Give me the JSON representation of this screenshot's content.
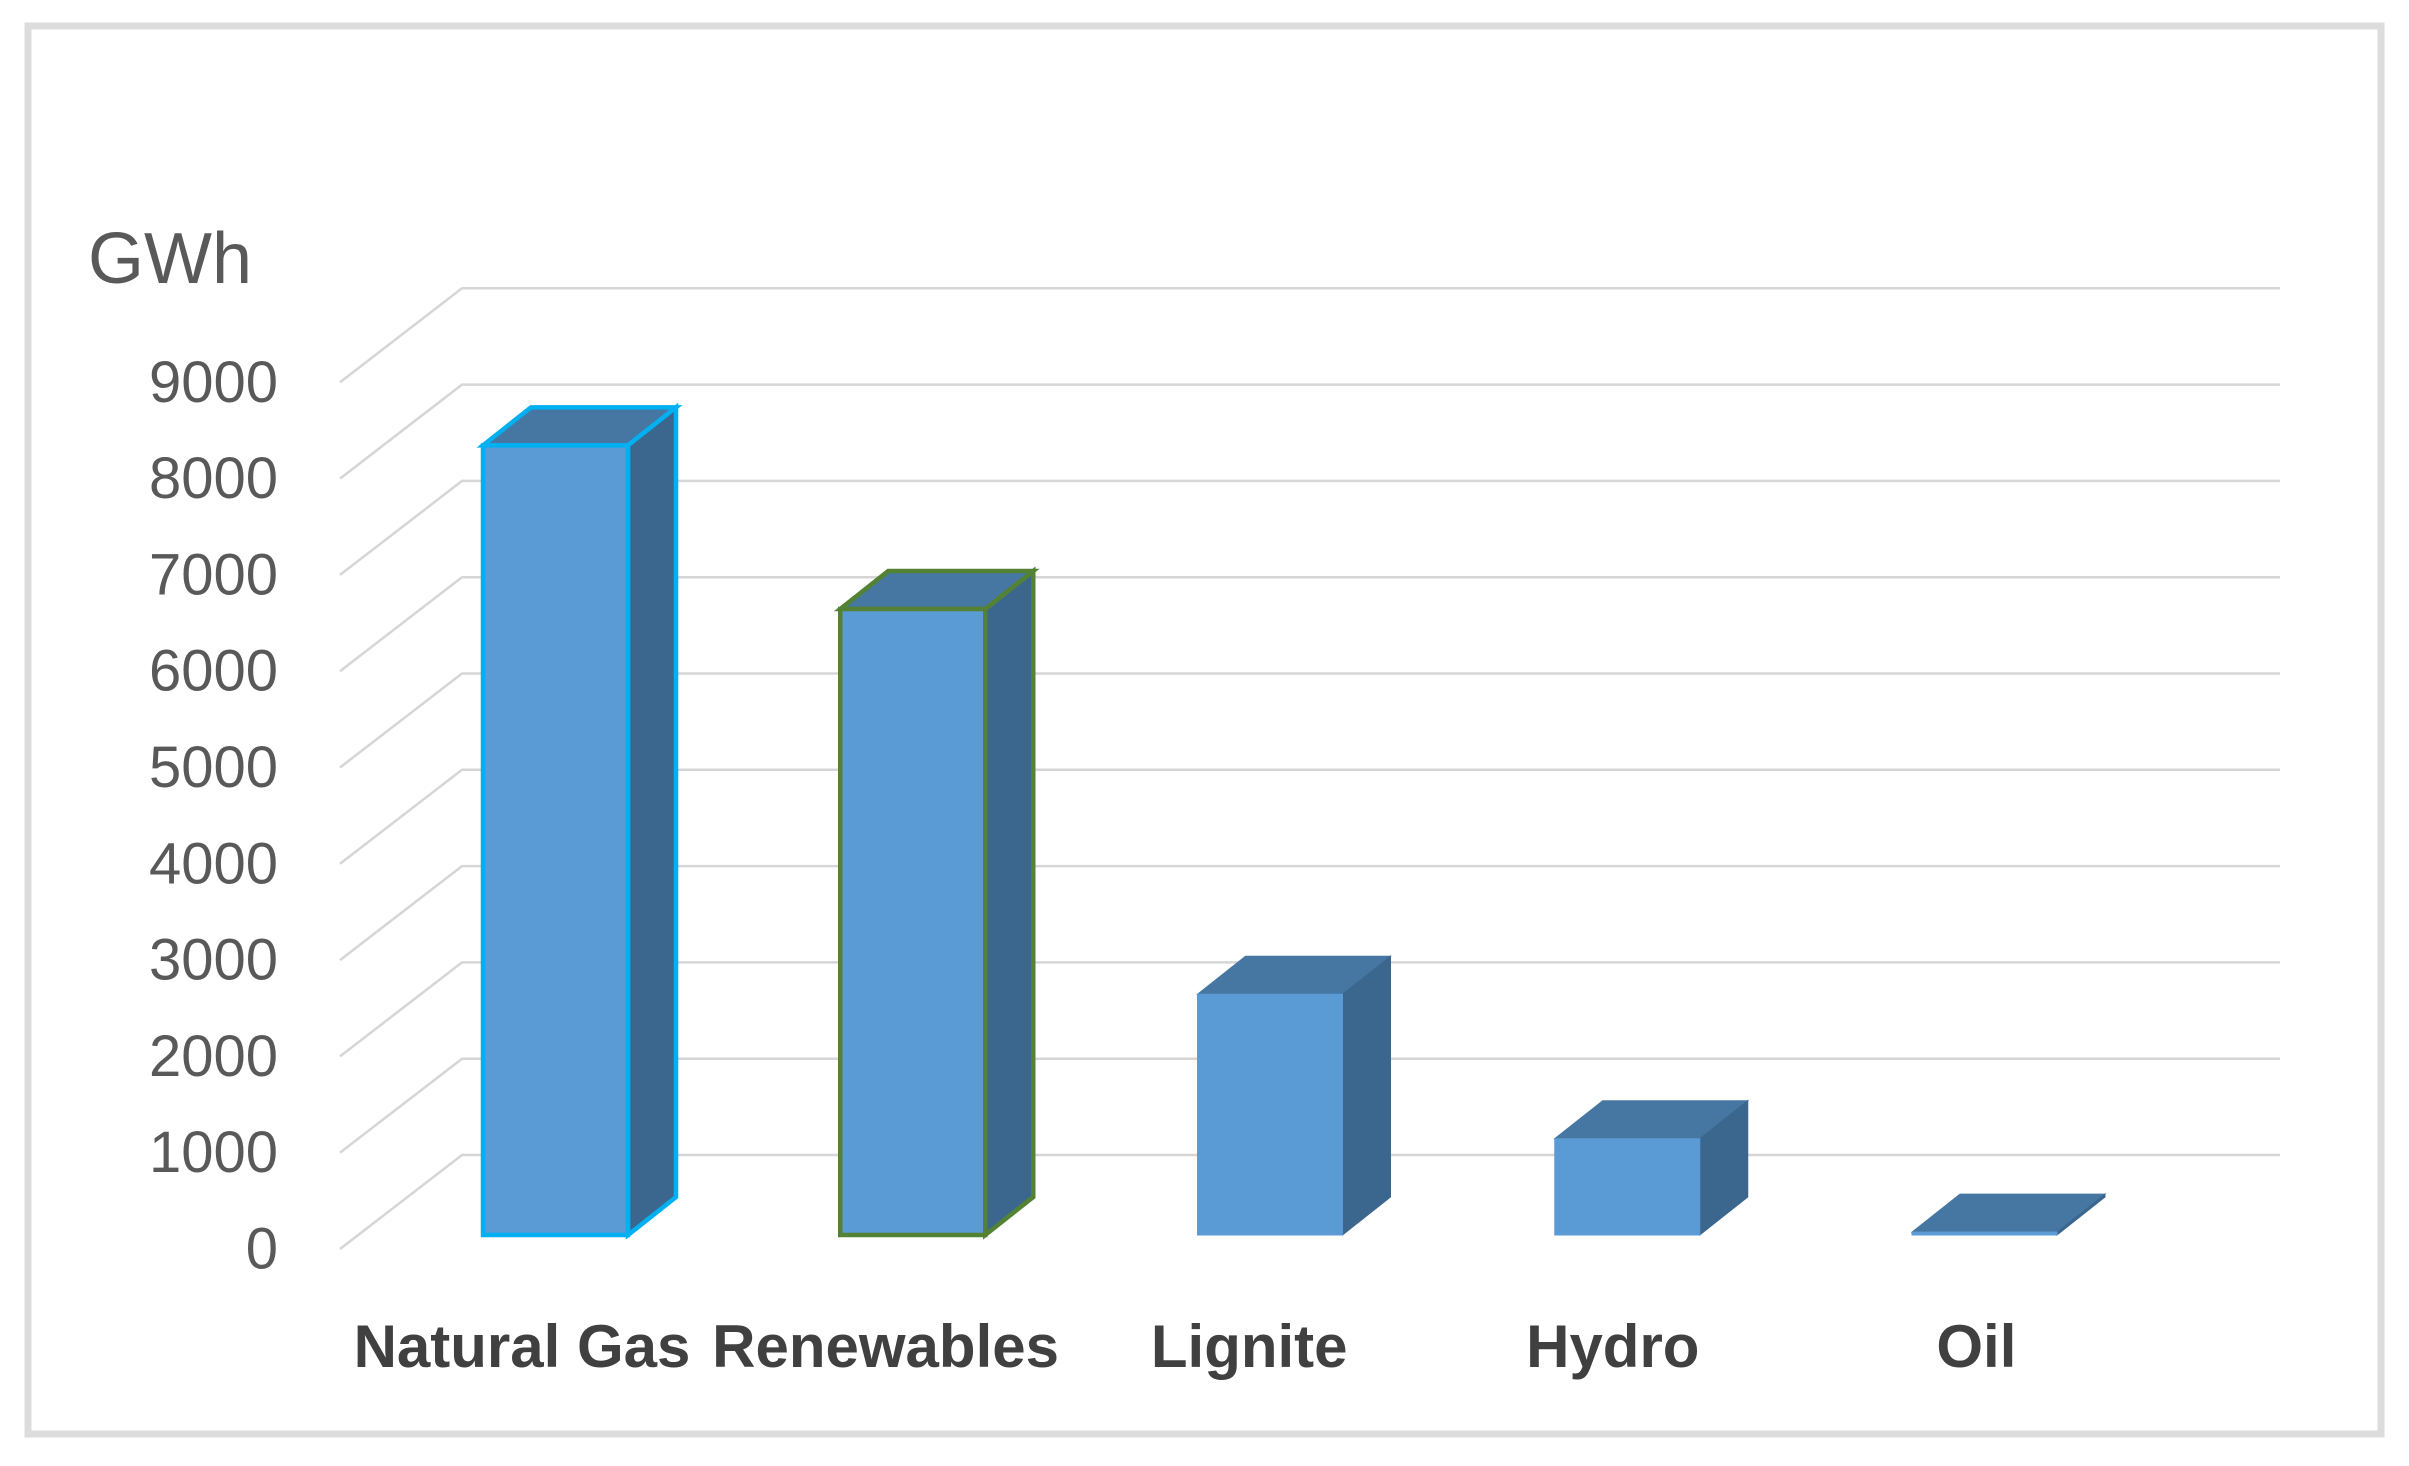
{
  "chart_data": {
    "type": "bar",
    "variant": "3d-column",
    "title": "GWh",
    "categories": [
      "Natural Gas",
      "Renewables",
      "Lignite",
      "Hydro",
      "Oil"
    ],
    "values": [
      8200,
      6500,
      2500,
      1000,
      30
    ],
    "xlabel": "",
    "ylabel": "GWh",
    "ylim": [
      0,
      9000
    ],
    "ytick_step": 1000,
    "yticks": [
      0,
      1000,
      2000,
      3000,
      4000,
      5000,
      6000,
      7000,
      8000,
      9000
    ],
    "ytick_labels": [
      "0",
      "1000",
      "2000",
      "3000",
      "4000",
      "5000",
      "6000",
      "7000",
      "8000",
      "9000"
    ],
    "grid": true,
    "legend": false,
    "series_outline_colors": [
      "#00B0F0",
      "#548235",
      null,
      null,
      null
    ],
    "colors": {
      "bar_front": "#5B9BD5",
      "bar_top": "#4677A3",
      "bar_side": "#3B678F",
      "outline_natural_gas": "#00B0F0",
      "outline_renewables": "#548235",
      "gridline": "#D6D6D6",
      "chart_border": "#DCDCDC",
      "tick_text": "#595959",
      "category_text": "#404040",
      "axis_title_text": "#595959"
    }
  }
}
